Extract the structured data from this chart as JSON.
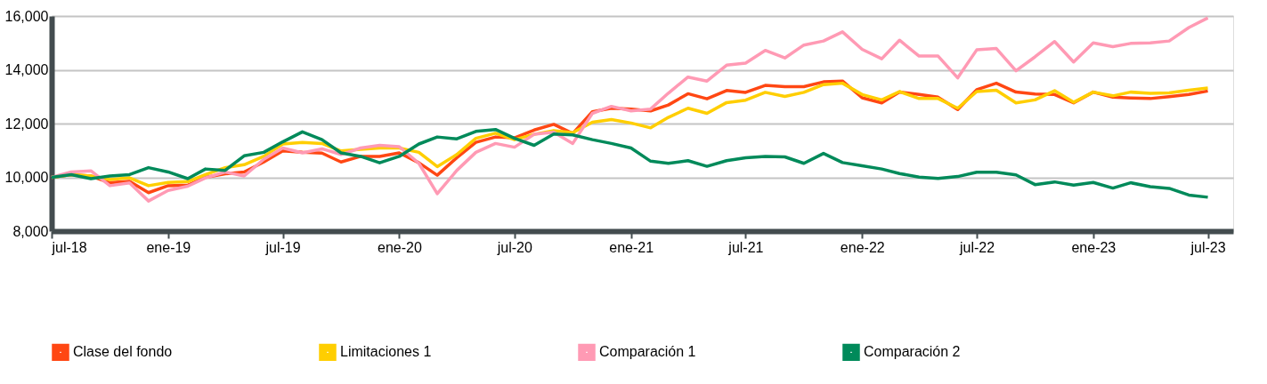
{
  "chart_data": {
    "type": "line",
    "x": [
      "2018-07",
      "2018-08",
      "2018-09",
      "2018-10",
      "2018-11",
      "2018-12",
      "2019-01",
      "2019-02",
      "2019-03",
      "2019-04",
      "2019-05",
      "2019-06",
      "2019-07",
      "2019-08",
      "2019-09",
      "2019-10",
      "2019-11",
      "2019-12",
      "2020-01",
      "2020-02",
      "2020-03",
      "2020-04",
      "2020-05",
      "2020-06",
      "2020-07",
      "2020-08",
      "2020-09",
      "2020-10",
      "2020-11",
      "2020-12",
      "2021-01",
      "2021-02",
      "2021-03",
      "2021-04",
      "2021-05",
      "2021-06",
      "2021-07",
      "2021-08",
      "2021-09",
      "2021-10",
      "2021-11",
      "2021-12",
      "2022-01",
      "2022-02",
      "2022-03",
      "2022-04",
      "2022-05",
      "2022-06",
      "2022-07",
      "2022-08",
      "2022-09",
      "2022-10",
      "2022-11",
      "2022-12",
      "2023-01",
      "2023-02",
      "2023-03",
      "2023-04",
      "2023-05",
      "2023-06",
      "2023-07"
    ],
    "series": [
      {
        "name": "Clase del fondo",
        "color": "#ff4713",
        "values": [
          10000,
          10100,
          10050,
          9800,
          9850,
          9430,
          9690,
          9710,
          10000,
          10130,
          10200,
          10570,
          10980,
          10930,
          10900,
          10570,
          10780,
          10780,
          10910,
          10540,
          10080,
          10730,
          11300,
          11500,
          11470,
          11760,
          11970,
          11630,
          12440,
          12570,
          12540,
          12470,
          12690,
          13110,
          12920,
          13230,
          13160,
          13420,
          13370,
          13370,
          13550,
          13580,
          12960,
          12770,
          13170,
          13080,
          12980,
          12520,
          13260,
          13500,
          13170,
          13100,
          13080,
          12770,
          13170,
          12980,
          12950,
          12930,
          13000,
          13080,
          13210
        ]
      },
      {
        "name": "Limitaciones 1",
        "color": "#ffce00",
        "values": [
          10000,
          10100,
          10050,
          9920,
          9980,
          9690,
          9810,
          9840,
          10100,
          10360,
          10470,
          10780,
          11240,
          11300,
          11260,
          10980,
          11040,
          11090,
          11090,
          10930,
          10400,
          10850,
          11450,
          11640,
          11400,
          11600,
          11740,
          11660,
          12050,
          12150,
          12020,
          11840,
          12230,
          12570,
          12380,
          12780,
          12870,
          13160,
          13010,
          13160,
          13450,
          13500,
          13080,
          12880,
          13190,
          12930,
          12930,
          12570,
          13190,
          13240,
          12770,
          12880,
          13220,
          12790,
          13170,
          13030,
          13170,
          13120,
          13140,
          13240,
          13320
        ]
      },
      {
        "name": "Comparación 1",
        "color": "#ff9ab4",
        "values": [
          10000,
          10200,
          10240,
          9690,
          9790,
          9120,
          9510,
          9670,
          9980,
          10200,
          10050,
          10670,
          11090,
          10910,
          11060,
          10850,
          11090,
          11190,
          11140,
          10520,
          9390,
          10260,
          10930,
          11260,
          11120,
          11600,
          11680,
          11260,
          12380,
          12640,
          12470,
          12540,
          13130,
          13730,
          13580,
          14170,
          14250,
          14720,
          14440,
          14920,
          15070,
          15410,
          14760,
          14410,
          15100,
          14510,
          14510,
          13700,
          14740,
          14790,
          13960,
          14480,
          15050,
          14290,
          15000,
          14860,
          14980,
          15000,
          15070,
          15570,
          15930
        ]
      },
      {
        "name": "Comparación 2",
        "color": "#008a5a",
        "values": [
          10000,
          10100,
          9950,
          10050,
          10100,
          10360,
          10200,
          9950,
          10310,
          10260,
          10800,
          10930,
          11320,
          11690,
          11400,
          10910,
          10780,
          10540,
          10780,
          11240,
          11500,
          11430,
          11710,
          11780,
          11450,
          11190,
          11610,
          11580,
          11400,
          11260,
          11090,
          10600,
          10520,
          10620,
          10410,
          10620,
          10730,
          10780,
          10760,
          10520,
          10890,
          10550,
          10430,
          10310,
          10140,
          10010,
          9960,
          10030,
          10190,
          10190,
          10090,
          9730,
          9830,
          9710,
          9810,
          9600,
          9800,
          9650,
          9590,
          9340,
          9260
        ]
      }
    ],
    "xlim": [
      "2018-07",
      "2023-08-10"
    ],
    "xticks": [
      {
        "value": "2018-07",
        "label": "jul-18"
      },
      {
        "value": "2019-01",
        "label": "ene-19"
      },
      {
        "value": "2019-07",
        "label": "jul-19"
      },
      {
        "value": "2020-01",
        "label": "ene-20"
      },
      {
        "value": "2020-07",
        "label": "jul-20"
      },
      {
        "value": "2021-01",
        "label": "ene-21"
      },
      {
        "value": "2021-07",
        "label": "jul-21"
      },
      {
        "value": "2022-01",
        "label": "ene-22"
      },
      {
        "value": "2022-07",
        "label": "jul-22"
      },
      {
        "value": "2023-01",
        "label": "ene-23"
      },
      {
        "value": "2023-07",
        "label": "jul-23"
      }
    ],
    "ylim": [
      8000,
      16000
    ],
    "yticks": [
      {
        "value": 8000,
        "label": "8,000"
      },
      {
        "value": 10000,
        "label": "10,000"
      },
      {
        "value": 12000,
        "label": "12,000"
      },
      {
        "value": 14000,
        "label": "14,000"
      },
      {
        "value": 16000,
        "label": "16,000"
      }
    ],
    "grid": "y",
    "legend": "bottom",
    "marker": "none",
    "line_style": "solid"
  }
}
